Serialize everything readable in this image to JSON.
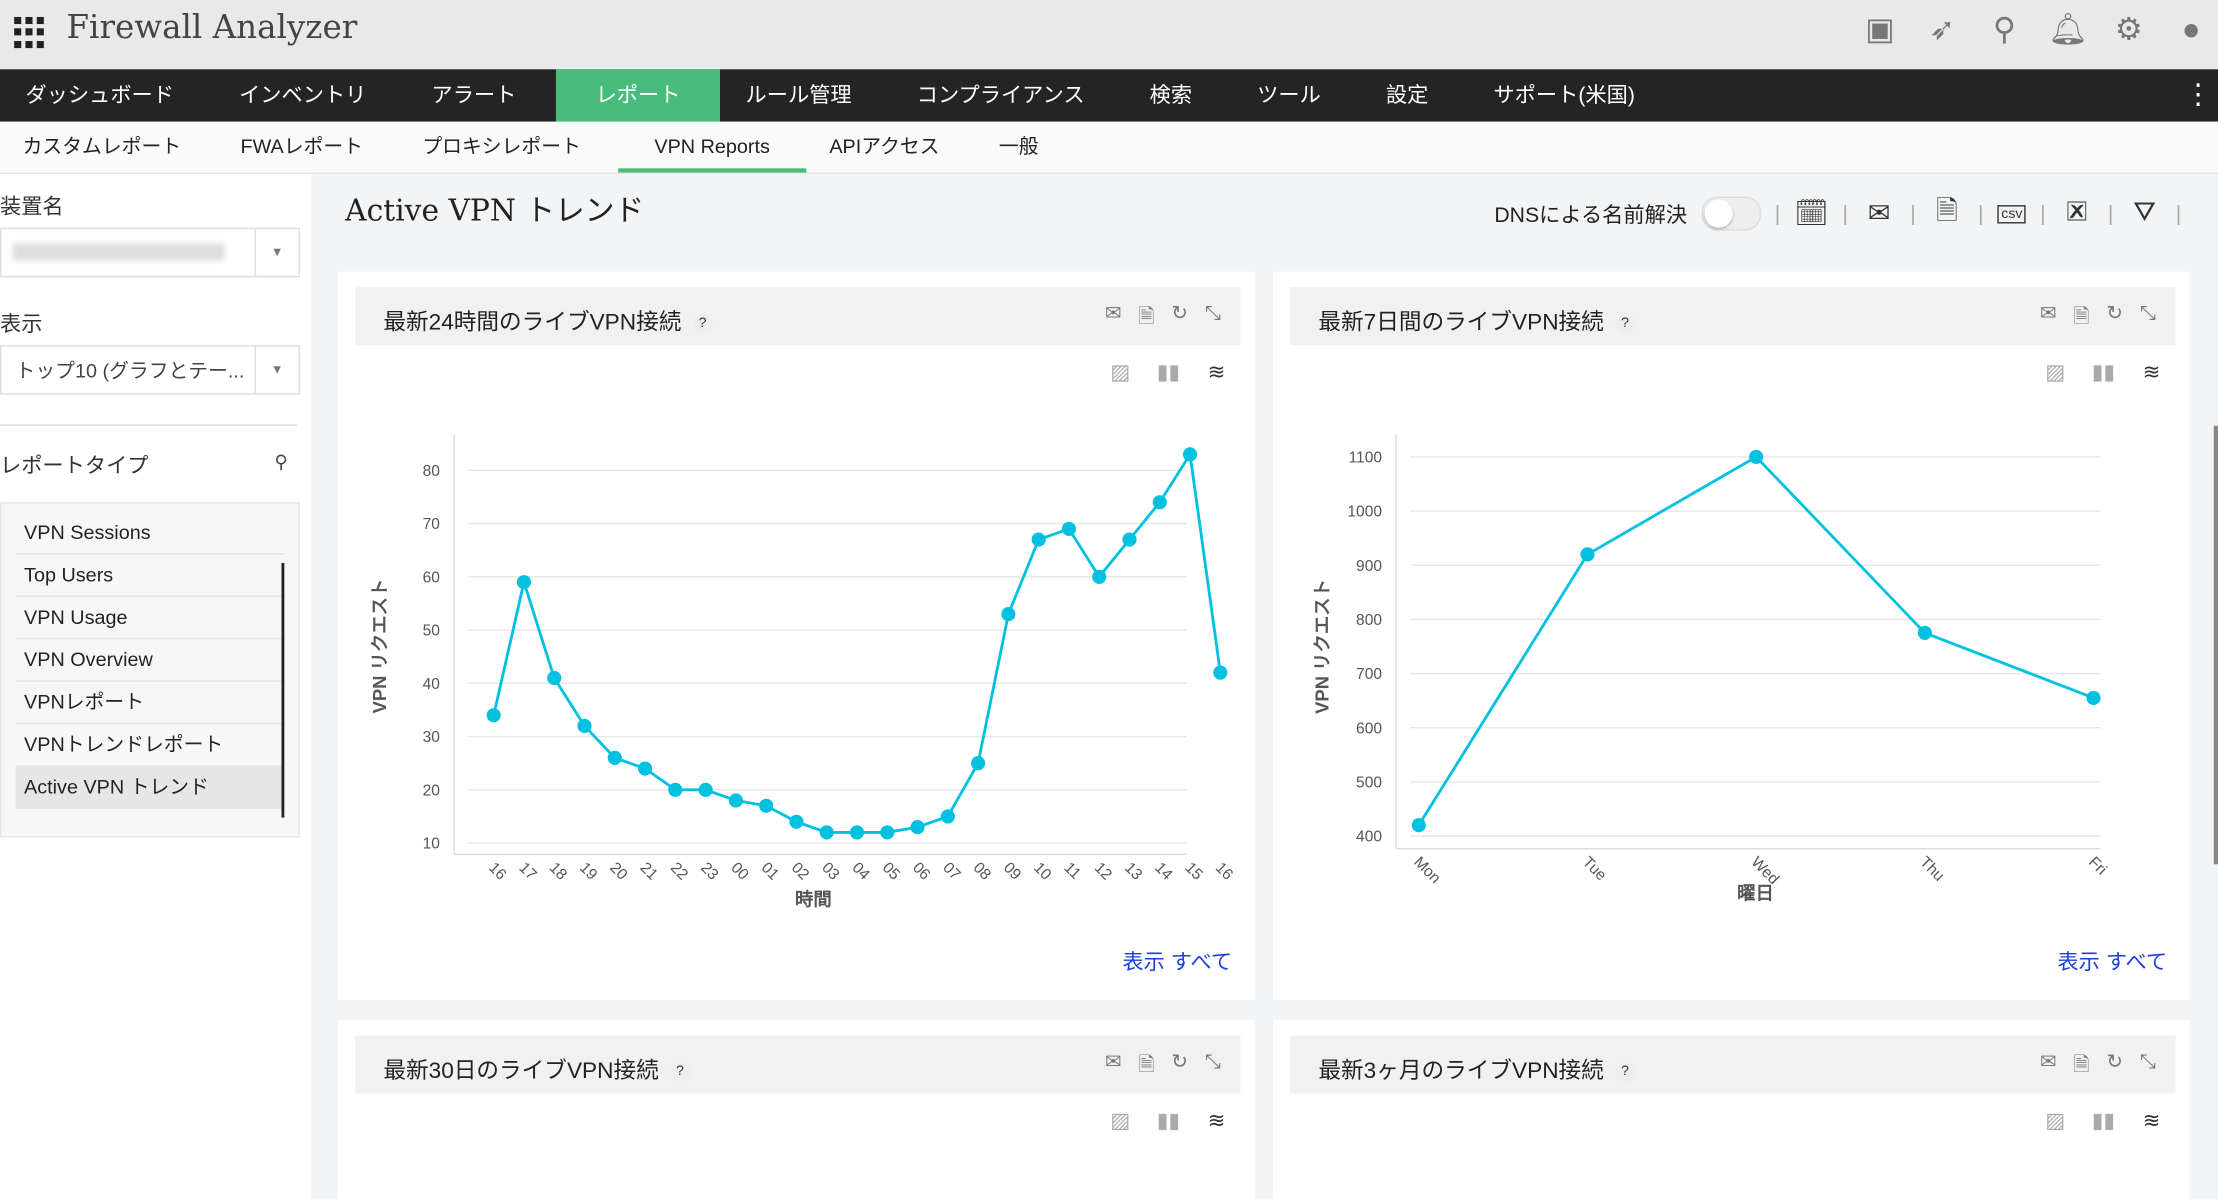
{
  "app": {
    "title": "Firewall Analyzer",
    "top_icons": [
      "presentation-icon",
      "rocket-icon",
      "search-icon",
      "bell-icon",
      "gear-icon",
      "user-avatar-icon"
    ]
  },
  "mainnav": [
    "ダッシュボード",
    "インベントリ",
    "アラート",
    "レポート",
    "ルール管理",
    "コンプライアンス",
    "検索",
    "ツール",
    "設定",
    "サポート(米国)"
  ],
  "mainnav_active": 3,
  "subnav": [
    "カスタムレポート",
    "FWAレポート",
    "プロキシレポート",
    "VPN Reports",
    "APIアクセス",
    "一般"
  ],
  "subnav_active": 3,
  "sidebar": {
    "device_label": "装置名",
    "display_label": "表示",
    "display_value": "トップ10 (グラフとテー...",
    "report_type_label": "レポートタイプ",
    "report_types": [
      "VPN Sessions",
      "Top Users",
      "VPN Usage",
      "VPN Overview",
      "VPNレポート",
      "VPNトレンドレポート",
      "Active VPN トレンド"
    ],
    "active_report": 6
  },
  "page": {
    "title": "Active VPN トレンド",
    "dns_label": "DNSによる名前解決",
    "dns_enabled": false
  },
  "accent": "#47bc7c",
  "series_color": "#00c2e0",
  "panels": [
    {
      "title": "最新24時間のライブVPN接続",
      "show_all": "表示 すべて"
    },
    {
      "title": "最新7日間のライブVPN接続",
      "show_all": "表示 すべて"
    },
    {
      "title": "最新30日のライブVPN接続"
    },
    {
      "title": "最新3ヶ月のライブVPN接続"
    }
  ],
  "chart_data": [
    {
      "type": "line",
      "xlabel": "時間",
      "ylabel": "VPN リクエスト",
      "ylim": [
        8,
        86
      ],
      "yticks": [
        10,
        20,
        30,
        40,
        50,
        60,
        70,
        80
      ],
      "grid": true,
      "categories": [
        "16",
        "17",
        "18",
        "19",
        "20",
        "21",
        "22",
        "23",
        "00",
        "01",
        "02",
        "03",
        "04",
        "05",
        "06",
        "07",
        "08",
        "09",
        "10",
        "11",
        "12",
        "13",
        "14",
        "15",
        "16"
      ],
      "values": [
        34,
        59,
        41,
        32,
        26,
        24,
        20,
        20,
        18,
        17,
        14,
        12,
        12,
        12,
        13,
        15,
        25,
        53,
        67,
        69,
        60,
        67,
        74,
        83,
        42
      ]
    },
    {
      "type": "line",
      "xlabel": "曜日",
      "ylabel": "VPN リクエスト",
      "ylim": [
        380,
        1120
      ],
      "yticks": [
        400,
        500,
        600,
        700,
        800,
        900,
        1000,
        1100
      ],
      "grid": true,
      "categories": [
        "Mon",
        "Tue",
        "Wed",
        "Thu",
        "Fri"
      ],
      "values": [
        420,
        920,
        1100,
        775,
        655
      ]
    }
  ]
}
